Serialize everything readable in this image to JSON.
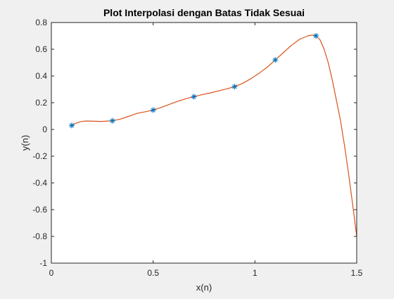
{
  "window": {
    "background": "#f0f0f0"
  },
  "chart_data": {
    "type": "line",
    "title": "Plot Interpolasi dengan Batas Tidak Sesuai",
    "xlabel": "x(n)",
    "ylabel": "y(n)",
    "xlim": [
      0,
      1.5
    ],
    "ylim": [
      -1,
      0.8
    ],
    "xticks": [
      0,
      0.5,
      1,
      1.5
    ],
    "xtick_labels": [
      "0",
      "0.5",
      "1",
      "1.5"
    ],
    "yticks": [
      -1,
      -0.8,
      -0.6,
      -0.4,
      -0.2,
      0,
      0.2,
      0.4,
      0.6,
      0.8
    ],
    "ytick_labels": [
      "-1",
      "-0.8",
      "-0.6",
      "-0.4",
      "-0.2",
      "0",
      "0.2",
      "0.4",
      "0.6",
      "0.8"
    ],
    "grid": false,
    "box": true,
    "series": [
      {
        "style": "markers",
        "marker": "*",
        "color": "#0072bd",
        "x": [
          0.1,
          0.3,
          0.5,
          0.7,
          0.9,
          1.1,
          1.3
        ],
        "y": [
          0.03,
          0.065,
          0.145,
          0.245,
          0.32,
          0.52,
          0.7
        ]
      },
      {
        "style": "line",
        "color": "#d95319",
        "x": [
          0.1,
          0.12,
          0.14,
          0.16,
          0.18,
          0.2,
          0.22,
          0.24,
          0.26,
          0.28,
          0.3,
          0.34,
          0.38,
          0.42,
          0.46,
          0.5,
          0.54,
          0.58,
          0.62,
          0.66,
          0.7,
          0.74,
          0.78,
          0.82,
          0.86,
          0.9,
          0.94,
          0.98,
          1.02,
          1.06,
          1.1,
          1.14,
          1.18,
          1.22,
          1.26,
          1.28,
          1.3,
          1.32,
          1.34,
          1.36,
          1.38,
          1.4,
          1.42,
          1.44,
          1.46,
          1.48,
          1.5
        ],
        "y": [
          0.03,
          0.046,
          0.057,
          0.062,
          0.063,
          0.062,
          0.061,
          0.06,
          0.061,
          0.063,
          0.065,
          0.078,
          0.098,
          0.12,
          0.132,
          0.145,
          0.165,
          0.188,
          0.21,
          0.23,
          0.245,
          0.26,
          0.273,
          0.288,
          0.303,
          0.32,
          0.345,
          0.38,
          0.42,
          0.465,
          0.52,
          0.575,
          0.63,
          0.675,
          0.7,
          0.706,
          0.7,
          0.67,
          0.6,
          0.5,
          0.37,
          0.22,
          0.07,
          -0.12,
          -0.33,
          -0.56,
          -0.8
        ]
      }
    ]
  }
}
